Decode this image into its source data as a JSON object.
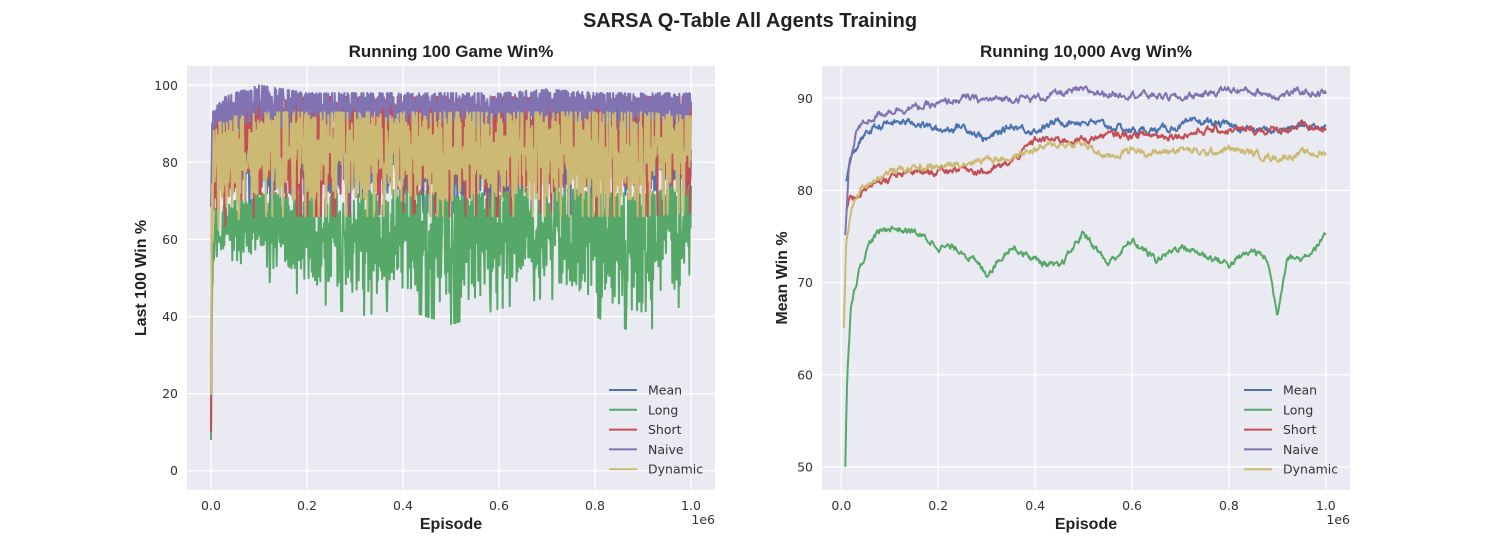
{
  "figure_title": "SARSA Q-Table All Agents Training",
  "chart_data": [
    {
      "type": "line",
      "title": "Running 100 Game Win%",
      "xlabel": "Episode",
      "ylabel": "Last 100 Win %",
      "x_multiplier_label": "1e6",
      "xlim": [
        -0.05,
        1.05
      ],
      "ylim": [
        -5,
        105
      ],
      "xticks": [
        0.0,
        0.2,
        0.4,
        0.6,
        0.8,
        1.0
      ],
      "xticklabels": [
        "0.0",
        "0.2",
        "0.4",
        "0.6",
        "0.8",
        "1.0"
      ],
      "yticks": [
        0,
        20,
        40,
        60,
        80,
        100
      ],
      "yticklabels": [
        "0",
        "20",
        "40",
        "60",
        "80",
        "100"
      ],
      "grid": true,
      "legend_position": "lower-right",
      "series": [
        {
          "name": "Mean",
          "color": "#4C72B0",
          "x": [
            0.0,
            0.002,
            0.005,
            0.01,
            0.05,
            0.1,
            0.2,
            0.3,
            0.4,
            0.5,
            0.6,
            0.7,
            0.8,
            0.9,
            1.0
          ],
          "y_low": [
            10,
            55,
            65,
            67,
            68,
            68,
            67,
            66,
            67,
            67,
            66,
            67,
            66,
            67,
            68
          ],
          "y_high": [
            10,
            85,
            92,
            94,
            95,
            95,
            95,
            95,
            95,
            95,
            95,
            95,
            95,
            95,
            94
          ]
        },
        {
          "name": "Long",
          "color": "#55A868",
          "x": [
            0.0,
            0.002,
            0.005,
            0.01,
            0.05,
            0.1,
            0.2,
            0.3,
            0.4,
            0.5,
            0.6,
            0.7,
            0.8,
            0.9,
            1.0
          ],
          "y_low": [
            0,
            30,
            45,
            52,
            55,
            50,
            45,
            40,
            42,
            38,
            42,
            45,
            40,
            35,
            45
          ],
          "y_high": [
            8,
            50,
            62,
            68,
            70,
            72,
            72,
            72,
            73,
            72,
            72,
            74,
            72,
            72,
            74
          ]
        },
        {
          "name": "Short",
          "color": "#C44E52",
          "x": [
            0.0,
            0.002,
            0.005,
            0.01,
            0.05,
            0.1,
            0.2,
            0.3,
            0.4,
            0.5,
            0.6,
            0.7,
            0.8,
            0.9,
            1.0
          ],
          "y_low": [
            10,
            50,
            60,
            62,
            65,
            66,
            66,
            66,
            67,
            66,
            66,
            67,
            66,
            66,
            67
          ],
          "y_high": [
            10,
            80,
            88,
            92,
            95,
            96,
            97,
            97,
            97,
            97,
            97,
            97,
            97,
            97,
            97
          ]
        },
        {
          "name": "Naive",
          "color": "#8172B2",
          "x": [
            0.0,
            0.002,
            0.005,
            0.01,
            0.05,
            0.1,
            0.2,
            0.3,
            0.4,
            0.5,
            0.6,
            0.7,
            0.8,
            0.9,
            1.0
          ],
          "y_low": [
            50,
            80,
            85,
            86,
            88,
            89,
            89,
            89,
            89,
            89,
            89,
            89,
            89,
            89,
            89
          ],
          "y_high": [
            75,
            90,
            94,
            96,
            98,
            100,
            98,
            98,
            98,
            98,
            98,
            99,
            98,
            98,
            98
          ]
        },
        {
          "name": "Dynamic",
          "color": "#CCB974",
          "x": [
            0.0,
            0.002,
            0.005,
            0.01,
            0.05,
            0.1,
            0.2,
            0.3,
            0.4,
            0.5,
            0.6,
            0.7,
            0.8,
            0.9,
            1.0
          ],
          "y_low": [
            12,
            50,
            58,
            62,
            65,
            66,
            66,
            66,
            66,
            66,
            66,
            66,
            66,
            66,
            67
          ],
          "y_high": [
            20,
            78,
            88,
            90,
            92,
            93,
            93,
            93,
            93,
            93,
            93,
            93,
            93,
            93,
            92
          ]
        }
      ]
    },
    {
      "type": "line",
      "title": "Running 10,000 Avg Win%",
      "xlabel": "Episode",
      "ylabel": "Mean Win %",
      "x_multiplier_label": "1e6",
      "xlim": [
        -0.04,
        1.05
      ],
      "ylim": [
        47.5,
        93.5
      ],
      "xticks": [
        0.0,
        0.2,
        0.4,
        0.6,
        0.8,
        1.0
      ],
      "xticklabels": [
        "0.0",
        "0.2",
        "0.4",
        "0.6",
        "0.8",
        "1.0"
      ],
      "yticks": [
        50,
        60,
        70,
        80,
        90
      ],
      "yticklabels": [
        "50",
        "60",
        "70",
        "80",
        "90"
      ],
      "grid": true,
      "legend_position": "lower-right",
      "series": [
        {
          "name": "Mean",
          "color": "#4C72B0",
          "x": [
            0.01,
            0.02,
            0.04,
            0.06,
            0.08,
            0.1,
            0.15,
            0.2,
            0.25,
            0.3,
            0.35,
            0.4,
            0.45,
            0.5,
            0.55,
            0.6,
            0.65,
            0.7,
            0.75,
            0.8,
            0.85,
            0.9,
            0.95,
            1.0
          ],
          "y": [
            81,
            83.5,
            85.5,
            86.5,
            87,
            87.3,
            87.5,
            86.5,
            87,
            85.5,
            87,
            86.5,
            87.5,
            87.5,
            87,
            86.5,
            86.5,
            87,
            87.5,
            87,
            86.5,
            86.5,
            87,
            87
          ]
        },
        {
          "name": "Long",
          "color": "#55A868",
          "x": [
            0.008,
            0.012,
            0.02,
            0.04,
            0.06,
            0.08,
            0.1,
            0.15,
            0.2,
            0.25,
            0.3,
            0.35,
            0.4,
            0.45,
            0.5,
            0.55,
            0.6,
            0.65,
            0.7,
            0.75,
            0.8,
            0.85,
            0.88,
            0.9,
            0.92,
            0.95,
            1.0
          ],
          "y": [
            49.8,
            60,
            68,
            72,
            74.5,
            75.5,
            76,
            75.5,
            74,
            73.5,
            71,
            74,
            72.5,
            71.5,
            75.5,
            72,
            74.5,
            72.5,
            74,
            73,
            72,
            73.5,
            72.5,
            66.5,
            73,
            72.5,
            75
          ]
        },
        {
          "name": "Short",
          "color": "#C44E52",
          "x": [
            0.01,
            0.02,
            0.04,
            0.06,
            0.08,
            0.1,
            0.15,
            0.2,
            0.25,
            0.3,
            0.35,
            0.4,
            0.45,
            0.5,
            0.55,
            0.6,
            0.65,
            0.7,
            0.75,
            0.8,
            0.85,
            0.9,
            0.95,
            1.0
          ],
          "y": [
            78,
            79,
            79.8,
            80.5,
            81,
            81.3,
            82,
            82,
            82.5,
            82,
            83,
            85.5,
            85.5,
            85.5,
            86,
            86,
            86,
            86,
            86.5,
            86.5,
            86.5,
            86.5,
            87,
            86.5
          ]
        },
        {
          "name": "Naive",
          "color": "#8172B2",
          "x": [
            0.008,
            0.015,
            0.03,
            0.05,
            0.08,
            0.1,
            0.15,
            0.2,
            0.25,
            0.3,
            0.35,
            0.4,
            0.45,
            0.5,
            0.55,
            0.6,
            0.65,
            0.7,
            0.75,
            0.8,
            0.85,
            0.9,
            0.95,
            1.0
          ],
          "y": [
            75,
            82,
            86.5,
            87.5,
            88.3,
            88.7,
            89,
            89.3,
            90,
            89.8,
            90,
            90,
            90.5,
            90.8,
            90.5,
            90.5,
            90.3,
            90,
            90.5,
            91,
            90.7,
            90.3,
            90.7,
            90.5
          ]
        },
        {
          "name": "Dynamic",
          "color": "#CCB974",
          "x": [
            0.005,
            0.01,
            0.02,
            0.04,
            0.06,
            0.08,
            0.1,
            0.15,
            0.2,
            0.25,
            0.3,
            0.35,
            0.4,
            0.45,
            0.5,
            0.55,
            0.6,
            0.65,
            0.7,
            0.75,
            0.8,
            0.85,
            0.9,
            0.95,
            1.0
          ],
          "y": [
            65,
            74,
            78,
            80,
            81,
            81.5,
            82,
            82.5,
            82.5,
            83,
            83.5,
            83.5,
            84.5,
            85,
            85,
            83.5,
            84.5,
            84,
            84.5,
            84,
            84.5,
            84,
            83.5,
            84,
            84
          ]
        }
      ]
    }
  ]
}
